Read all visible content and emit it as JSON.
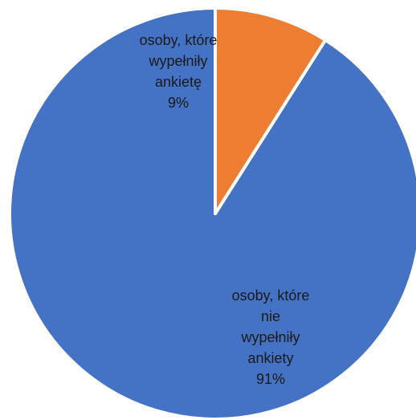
{
  "chart_data": {
    "type": "pie",
    "start_angle_deg": 0,
    "direction": "clockwise",
    "slices": [
      {
        "label_lines": [
          "osoby, które",
          "wypełniły",
          "ankietę"
        ],
        "percent_label": "9%",
        "value": 9,
        "color": "#ED7D31"
      },
      {
        "label_lines": [
          "osoby, które",
          "nie",
          "wypełniły",
          "ankiety"
        ],
        "percent_label": "91%",
        "value": 91,
        "color": "#4472C4"
      }
    ]
  }
}
